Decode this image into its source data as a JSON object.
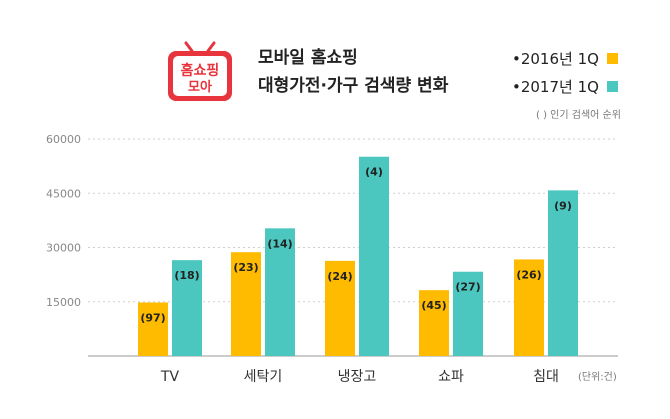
{
  "logo": {
    "line1": "홈쇼핑",
    "line2": "모아",
    "color": "#e8343c"
  },
  "header": {
    "title_line1": "모바일 홈쇼핑",
    "title_line2": "대형가전·가구 검색량 변화"
  },
  "legend": {
    "items": [
      {
        "label": "•2016년 1Q",
        "color": "#ffbb00"
      },
      {
        "label": "•2017년 1Q",
        "color": "#4cc7c0"
      }
    ],
    "note": "( ) 인기 검색어 순위"
  },
  "chart_data": {
    "type": "bar",
    "categories": [
      "TV",
      "세탁기",
      "냉장고",
      "쇼파",
      "침대"
    ],
    "series": [
      {
        "name": "2016년 1Q",
        "color": "#ffbb00",
        "values": [
          14800,
          28700,
          26300,
          18200,
          26700
        ],
        "labels": [
          "(97)",
          "(23)",
          "(24)",
          "(45)",
          "(26)"
        ]
      },
      {
        "name": "2017년 1Q",
        "color": "#4cc7c0",
        "values": [
          26500,
          35300,
          55100,
          23300,
          45800
        ],
        "labels": [
          "(18)",
          "(14)",
          "(4)",
          "(27)",
          "(9)"
        ]
      }
    ],
    "yticks": [
      "60000",
      "45000",
      "30000",
      "15000"
    ],
    "ylim": [
      0,
      60000
    ],
    "unit_label": "(단위:건)",
    "grid": true
  }
}
